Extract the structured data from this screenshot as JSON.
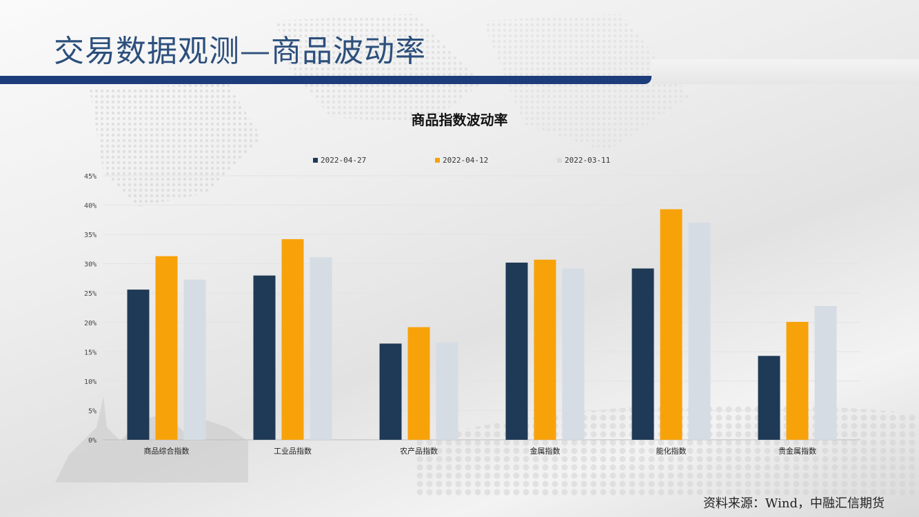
{
  "page": {
    "title": "交易数据观测—商品波动率",
    "source": "资料来源：Wind，中融汇信期货"
  },
  "chart_data": {
    "type": "bar",
    "title": "商品指数波动率",
    "categories": [
      "商品综合指数",
      "工业品指数",
      "农产品指数",
      "金属指数",
      "能化指数",
      "贵金属指数"
    ],
    "series": [
      {
        "name": "2022-04-27",
        "color": "#1f3a56",
        "values": [
          25.6,
          28.0,
          16.4,
          30.2,
          29.2,
          14.3
        ]
      },
      {
        "name": "2022-04-12",
        "color": "#f8a20a",
        "values": [
          31.3,
          34.2,
          19.2,
          30.7,
          39.3,
          20.1
        ]
      },
      {
        "name": "2022-03-11",
        "color": "#d5dce4",
        "values": [
          27.3,
          31.1,
          16.6,
          29.2,
          37.0,
          22.8
        ]
      }
    ],
    "ylim": [
      0,
      45
    ],
    "yticks": [
      0,
      5,
      10,
      15,
      20,
      25,
      30,
      35,
      40,
      45
    ],
    "ytick_suffix": "%",
    "grid": true,
    "legend_position": "top"
  }
}
